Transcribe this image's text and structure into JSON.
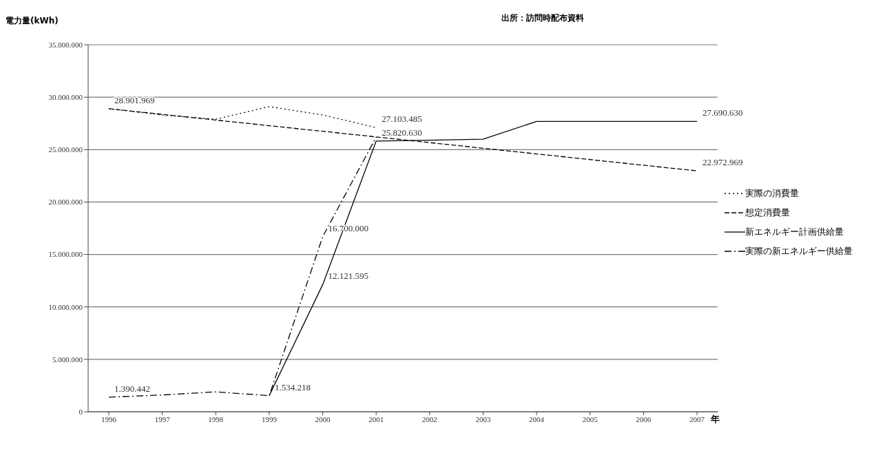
{
  "chart_data": {
    "type": "line",
    "ylabel": "電力量(kWh)",
    "xlabel": "年",
    "annotations": [
      "出所：訪問時配布資料"
    ],
    "categories": [
      "1996",
      "1997",
      "1998",
      "1999",
      "2000",
      "2001",
      "2002",
      "2003",
      "2004",
      "2005",
      "2006",
      "2007"
    ],
    "series": [
      {
        "name": "実際の消費量",
        "color": "#000000",
        "line_style": "dotted",
        "values": [
          28901969,
          28300000,
          27900000,
          29100000,
          28300000,
          27103485,
          null,
          null,
          null,
          null,
          null,
          null
        ],
        "value_labels": [
          "28.901.969",
          null,
          null,
          null,
          null,
          "27.103.485",
          null,
          null,
          null,
          null,
          null,
          null
        ]
      },
      {
        "name": "想定消費量",
        "color": "#000000",
        "line_style": "dashed",
        "values": [
          28901969,
          28360000,
          27820000,
          27280000,
          26750000,
          26210000,
          25670000,
          25130000,
          24590000,
          24050000,
          23510000,
          22972969
        ],
        "value_labels": [
          null,
          null,
          null,
          null,
          null,
          null,
          null,
          null,
          null,
          null,
          null,
          "22.972.969"
        ]
      },
      {
        "name": "新エネルギー計画供給量",
        "color": "#000000",
        "line_style": "solid",
        "values": [
          null,
          null,
          null,
          1534218,
          12121595,
          25820630,
          25900000,
          26000000,
          27690630,
          27690630,
          27690630,
          27690630
        ],
        "value_labels": [
          null,
          null,
          null,
          "1.534.218",
          "12.121.595",
          "25.820.630",
          null,
          null,
          null,
          null,
          null,
          "27.690.630"
        ]
      },
      {
        "name": "実際の新エネルギー供給量",
        "color": "#000000",
        "line_style": "dashdot",
        "values": [
          1390442,
          1600000,
          1900000,
          1534218,
          16700000,
          26200000,
          null,
          null,
          null,
          null,
          null,
          null
        ],
        "value_labels": [
          "1.390.442",
          null,
          null,
          null,
          "16.700.000",
          null,
          null,
          null,
          null,
          null,
          null,
          null
        ]
      }
    ],
    "ylim": [
      0,
      35000000
    ],
    "yticks": [
      {
        "value": 0,
        "label": "0"
      },
      {
        "value": 5000000,
        "label": "5.000.000"
      },
      {
        "value": 10000000,
        "label": "10.000.000"
      },
      {
        "value": 15000000,
        "label": "15.000.000"
      },
      {
        "value": 20000000,
        "label": "20.000.000"
      },
      {
        "value": 25000000,
        "label": "25.000.000"
      },
      {
        "value": 30000000,
        "label": "30.000.000"
      },
      {
        "value": 35000000,
        "label": "35.000.000"
      }
    ],
    "grid": "y",
    "legend": "right",
    "marker": "none"
  }
}
